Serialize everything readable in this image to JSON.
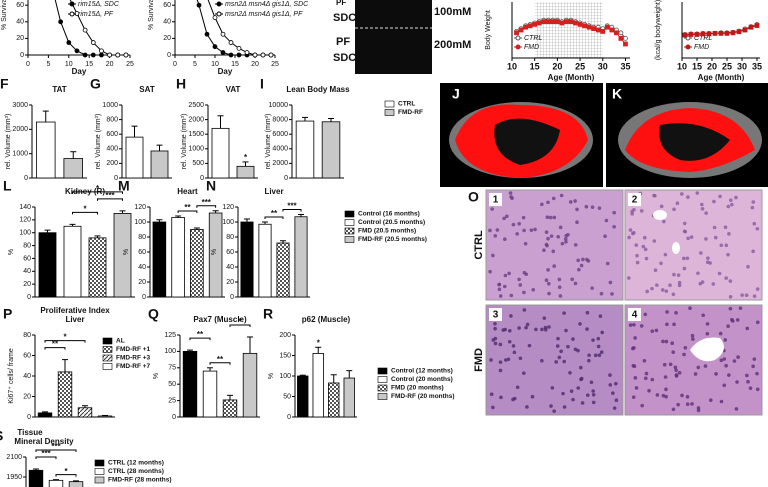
{
  "chart_data": [
    {
      "type": "line",
      "ylabel": "% Survival",
      "xlabel": "Day",
      "x": [
        0,
        2,
        4,
        6,
        8,
        10,
        12,
        14,
        16,
        18,
        20,
        22,
        24
      ],
      "xlim": [
        0,
        25
      ],
      "xticks": [
        0,
        5,
        10,
        15,
        20,
        25
      ],
      "ylim": [
        0,
        100
      ],
      "yticks": [
        0,
        20,
        40,
        60
      ],
      "series": [
        {
          "name": "rim15Δ, SDC",
          "color": "#000",
          "marker": "filled",
          "values": [
            100,
            100,
            95,
            80,
            40,
            15,
            5,
            0,
            0,
            0,
            0,
            0,
            0
          ]
        },
        {
          "name": "rim15Δ, PF",
          "color": "#000",
          "marker": "open",
          "values": [
            100,
            100,
            98,
            92,
            85,
            70,
            50,
            30,
            15,
            5,
            0,
            0,
            0
          ]
        }
      ]
    },
    {
      "type": "line",
      "ylabel": "% Survival",
      "xlabel": "Day",
      "x": [
        0,
        2,
        4,
        6,
        8,
        10,
        12,
        14,
        16,
        18,
        20,
        22,
        24
      ],
      "xlim": [
        0,
        25
      ],
      "xticks": [
        0,
        5,
        10,
        15,
        20,
        25
      ],
      "ylim": [
        0,
        100
      ],
      "yticks": [
        0,
        20,
        40,
        60
      ],
      "series": [
        {
          "name": "msn2Δ msn4Δ gis1Δ, SDC",
          "color": "#000",
          "marker": "filled",
          "values": [
            100,
            100,
            90,
            60,
            25,
            10,
            3,
            0,
            0,
            0,
            0,
            0,
            0
          ]
        },
        {
          "name": "msn2Δ msn4Δ gis1Δ, PF",
          "color": "#000",
          "marker": "open",
          "values": [
            100,
            100,
            97,
            90,
            70,
            45,
            25,
            15,
            8,
            3,
            0,
            0,
            0
          ]
        }
      ]
    },
    {
      "type": "line",
      "ylabel": "Body Weight",
      "xlabel": "Age (Month)",
      "x": [
        11,
        12,
        13,
        14,
        15,
        16,
        17,
        18,
        19,
        20,
        21,
        22,
        23,
        24,
        25,
        26,
        27,
        28,
        29,
        30,
        31,
        32,
        33,
        34,
        35
      ],
      "xlim": [
        10,
        36
      ],
      "xticks": [
        10,
        15,
        20,
        25,
        30,
        35
      ],
      "ylim": [
        20,
        40
      ],
      "series": [
        {
          "name": "CTRL",
          "color": "#555",
          "marker": "open",
          "values": [
            29.5,
            30.5,
            31.5,
            32,
            32.5,
            33,
            33.5,
            33.5,
            33.5,
            33.5,
            33,
            33.5,
            33.5,
            33,
            32.5,
            32,
            31.5,
            31,
            31,
            30.5,
            31.5,
            31,
            30,
            29,
            27
          ]
        },
        {
          "name": "FMD",
          "color": "#d62020",
          "marker": "filled",
          "values": [
            29,
            30,
            31,
            31.5,
            32,
            32.5,
            33,
            33,
            33,
            33,
            32.5,
            33,
            33,
            32.5,
            32,
            31.5,
            31,
            30.5,
            30,
            29.5,
            31,
            30,
            29,
            27,
            25
          ]
        }
      ]
    },
    {
      "type": "line",
      "ylabel": "(kcal/g bodyweight)",
      "xlabel": "Age (Month)",
      "x": [
        11,
        13,
        15,
        17,
        19,
        21,
        23,
        25,
        27,
        29,
        31,
        33,
        35
      ],
      "xlim": [
        10,
        36
      ],
      "xticks": [
        10,
        15,
        20,
        25,
        30,
        35
      ],
      "ylim": [
        0,
        1
      ],
      "series": [
        {
          "name": "CTRL",
          "color": "#555",
          "marker": "open",
          "values": [
            0.42,
            0.43,
            0.43,
            0.44,
            0.44,
            0.44,
            0.45,
            0.45,
            0.46,
            0.48,
            0.52,
            0.56,
            0.6
          ]
        },
        {
          "name": "FMD",
          "color": "#c01818",
          "marker": "filled",
          "values": [
            0.41,
            0.42,
            0.42,
            0.43,
            0.43,
            0.44,
            0.44,
            0.44,
            0.45,
            0.47,
            0.5,
            0.55,
            0.58
          ]
        }
      ]
    },
    {
      "type": "bar",
      "label": "F",
      "title": "TAT",
      "ylabel": "rel. Volume (mm³)",
      "values": [
        2300,
        800
      ],
      "errors": [
        450,
        280
      ],
      "fills": [
        "white",
        "gray"
      ],
      "ylim": [
        0,
        3000
      ],
      "yticks": [
        0,
        1000,
        2000,
        3000
      ]
    },
    {
      "type": "bar",
      "label": "G",
      "title": "SAT",
      "ylabel": "rel. Volume (mm³)",
      "values": [
        560,
        370
      ],
      "errors": [
        150,
        80
      ],
      "fills": [
        "white",
        "gray"
      ],
      "ylim": [
        0,
        1000
      ],
      "yticks": [
        0,
        200,
        400,
        600,
        800,
        1000
      ]
    },
    {
      "type": "bar",
      "label": "H",
      "title": "VAT",
      "ylabel": "rel. Volume (mm³)",
      "values": [
        1700,
        400
      ],
      "errors": [
        430,
        150
      ],
      "fills": [
        "white",
        "gray"
      ],
      "ylim": [
        0,
        2500
      ],
      "yticks": [
        0,
        500,
        1000,
        1500,
        2000,
        2500
      ],
      "annotations": [
        "*"
      ]
    },
    {
      "type": "bar",
      "label": "I",
      "title": "Lean Body Mass",
      "ylabel": "rel. Volume (mm³)",
      "values": [
        7800,
        7700
      ],
      "errors": [
        500,
        450
      ],
      "fills": [
        "white",
        "gray"
      ],
      "ylim": [
        0,
        10000
      ],
      "yticks": [
        0,
        2000,
        4000,
        6000,
        8000,
        10000
      ],
      "categories": [
        "CTRL",
        "FMD-RF"
      ]
    },
    {
      "type": "bar",
      "label": "L",
      "title": "Kidney (R)",
      "ylabel": "%",
      "values": [
        100,
        110,
        92,
        130
      ],
      "errors": [
        4,
        3,
        3,
        4
      ],
      "fills": [
        "black",
        "white",
        "checker",
        "gray"
      ],
      "ylim": [
        0,
        140
      ],
      "yticks": [
        0,
        20,
        40,
        60,
        80,
        100,
        120,
        140
      ],
      "annotations": [
        "*",
        "*",
        "***"
      ]
    },
    {
      "type": "bar",
      "label": "M",
      "title": "Heart",
      "ylabel": "%",
      "values": [
        100,
        106,
        90,
        112
      ],
      "errors": [
        3,
        2,
        2,
        3
      ],
      "fills": [
        "black",
        "white",
        "checker",
        "gray"
      ],
      "ylim": [
        0,
        120
      ],
      "yticks": [
        0,
        20,
        40,
        60,
        80,
        100,
        120
      ],
      "annotations": [
        "**",
        "***"
      ]
    },
    {
      "type": "bar",
      "label": "N",
      "title": "Liver",
      "ylabel": "%",
      "values": [
        100,
        97,
        72,
        107
      ],
      "errors": [
        4,
        3,
        3,
        3
      ],
      "fills": [
        "black",
        "white",
        "checker",
        "gray"
      ],
      "ylim": [
        0,
        120
      ],
      "yticks": [
        0,
        20,
        40,
        60,
        80,
        100,
        120
      ],
      "annotations": [
        "**",
        "***"
      ],
      "categories": [
        "Control (16 months)",
        "Control (20.5 months)",
        "FMD (20.5 months)",
        "FMD-RF (20.5 months)"
      ]
    },
    {
      "type": "bar",
      "label": "P",
      "title": "Proliferative Index",
      "subtitle": "Liver",
      "ylabel": "Ki67⁺ cells/ frame",
      "values": [
        4,
        44,
        9,
        1
      ],
      "errors": [
        1,
        12,
        2,
        0.5
      ],
      "fills": [
        "black",
        "checker",
        "diag",
        "white"
      ],
      "ylim": [
        0,
        80
      ],
      "yticks": [
        0,
        20,
        40,
        60,
        80
      ],
      "annotations": [
        "*",
        "**"
      ],
      "categories": [
        "AL",
        "FMD-RF +1",
        "FMD-RF +3",
        "FMD-RF +7"
      ]
    },
    {
      "type": "bar",
      "label": "Q",
      "title": "Pax7 (Muscle)",
      "ylabel": "%",
      "values": [
        100,
        70,
        26,
        97
      ],
      "errors": [
        2,
        5,
        7,
        25
      ],
      "fills": [
        "black",
        "white",
        "checker",
        "gray"
      ],
      "ylim": [
        0,
        125
      ],
      "yticks": [
        0,
        25,
        50,
        75,
        100,
        125
      ],
      "annotations": [
        "**",
        "**",
        "*"
      ]
    },
    {
      "type": "bar",
      "label": "R",
      "title": "p62 (Muscle)",
      "ylabel": "%",
      "values": [
        100,
        155,
        83,
        95
      ],
      "errors": [
        2,
        15,
        20,
        18
      ],
      "fills": [
        "black",
        "white",
        "checker",
        "gray"
      ],
      "ylim": [
        0,
        200
      ],
      "yticks": [
        0,
        50,
        100,
        150,
        200
      ],
      "annotations": [
        "*"
      ],
      "categories": [
        "Control (12 months)",
        "Control (20 months)",
        "FMD (20 months)",
        "FMD-RF (20 months)"
      ]
    },
    {
      "type": "bar",
      "label": "S",
      "title": "Tissue",
      "subtitle": "Mineral Density",
      "values": [
        2000,
        1925,
        1915
      ],
      "errors": [
        10,
        5,
        6
      ],
      "fills": [
        "black",
        "white",
        "gray"
      ],
      "ylim": [
        1800,
        2100
      ],
      "yticks": [
        1950,
        2100
      ],
      "annotations": [
        "***",
        "***",
        "*"
      ],
      "categories": [
        "CTRL (12 months)",
        "CTRL (28 months)",
        "FMD-RF (28 months)"
      ]
    }
  ],
  "images": {
    "yeast": {
      "rows": [
        "PF",
        "SDC",
        "PF",
        "SDC"
      ],
      "doses": [
        "100mM",
        "200mM"
      ]
    },
    "ct": [
      "J",
      "K"
    ],
    "histology": {
      "label": "O",
      "tiles": [
        "1",
        "2",
        "3",
        "4"
      ],
      "groups": [
        "CTRL",
        "FMD"
      ]
    }
  }
}
